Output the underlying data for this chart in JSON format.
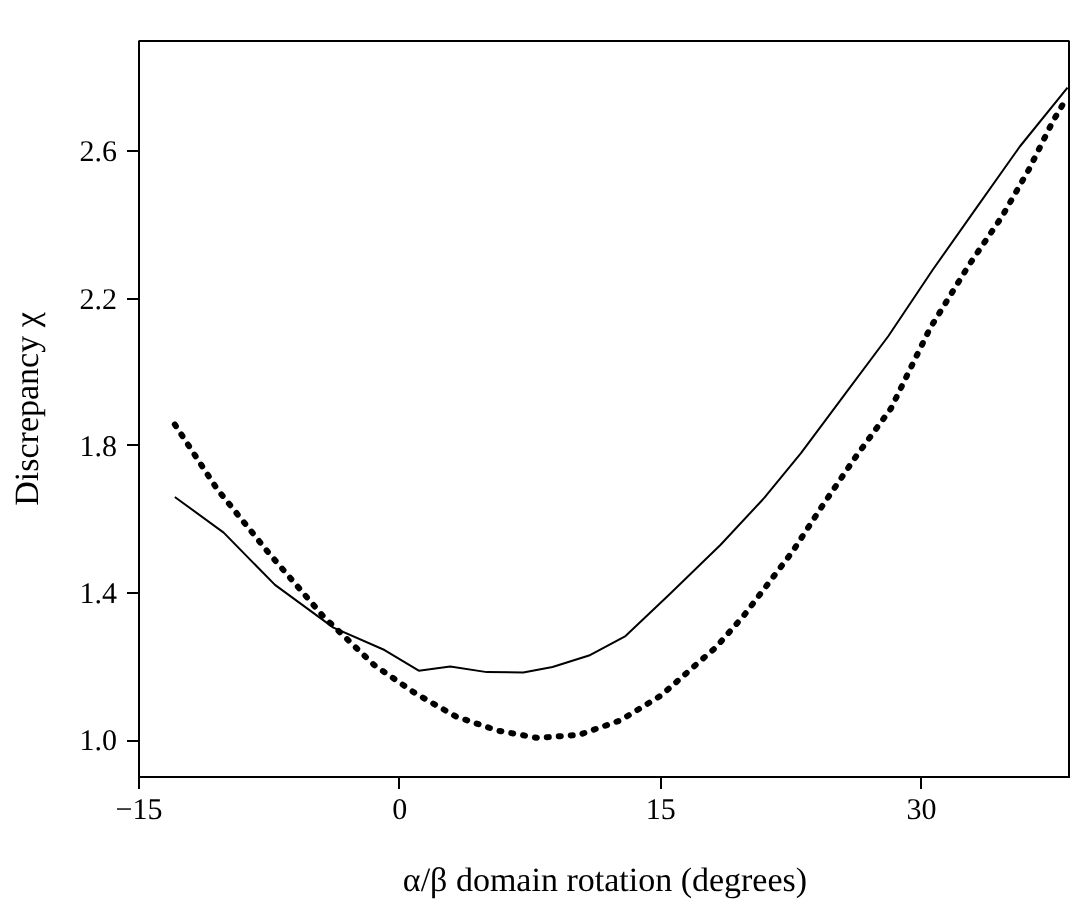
{
  "chart_data": {
    "type": "line",
    "xlabel": "α/β domain rotation (degrees)",
    "ylabel": "Discrepancy χ",
    "xlim": [
      -15,
      38.6
    ],
    "ylim": [
      0.9,
      2.9
    ],
    "xticks": [
      -15,
      0,
      15,
      30
    ],
    "yticks": [
      {
        "value": 1.0,
        "label": "1.0"
      },
      {
        "value": 1.4,
        "label": "1.4"
      },
      {
        "value": 1.8,
        "label": "1.8"
      },
      {
        "value": 2.2,
        "label": "2.2"
      },
      {
        "value": 2.6,
        "label": "2.6"
      }
    ],
    "grid": false,
    "marker": "none",
    "series": [
      {
        "color": "#000000",
        "line_style": "solid",
        "x": [
          -12.94,
          -10.13,
          -7.18,
          -3.82,
          -0.88,
          1.09,
          2.9,
          5.0,
          7.1,
          8.78,
          10.88,
          12.98,
          15.5,
          18.45,
          20.97,
          23.07,
          25.59,
          28.11,
          30.63,
          33.15,
          35.67,
          38.4
        ],
        "values": [
          1.661,
          1.564,
          1.422,
          1.306,
          1.245,
          1.189,
          1.2,
          1.185,
          1.184,
          1.199,
          1.23,
          1.283,
          1.396,
          1.531,
          1.659,
          1.78,
          1.94,
          2.099,
          2.277,
          2.446,
          2.614,
          2.773
        ]
      },
      {
        "color": "#000000",
        "line_style": "dotted",
        "x": [
          -12.94,
          -10.5,
          -7.56,
          -4.41,
          -1.47,
          0.84,
          3.24,
          5.63,
          7.94,
          10.34,
          12.69,
          15.04,
          17.1,
          18.15,
          19.79,
          22.56,
          24.33,
          26.22,
          28.24,
          30.5,
          32.73,
          34.62,
          36.18,
          37.56,
          38.11
        ],
        "values": [
          1.858,
          1.682,
          1.51,
          1.337,
          1.204,
          1.129,
          1.064,
          1.026,
          1.006,
          1.015,
          1.054,
          1.122,
          1.208,
          1.251,
          1.339,
          1.511,
          1.639,
          1.77,
          1.901,
          2.12,
          2.291,
          2.422,
          2.551,
          2.682,
          2.726
        ]
      }
    ]
  }
}
